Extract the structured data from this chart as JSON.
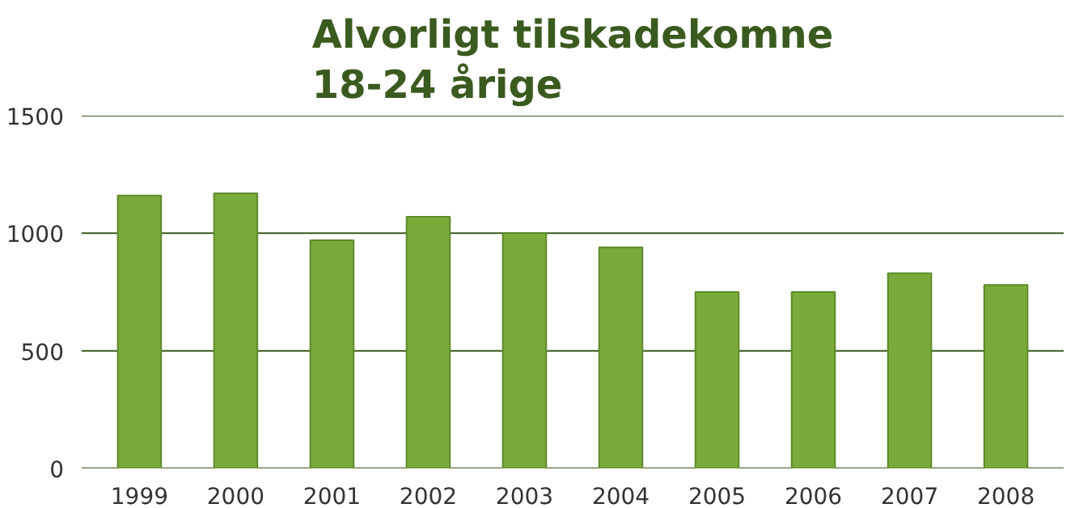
{
  "chart_data": {
    "type": "bar",
    "title": "Alvorligt tilskadekomne\n18-24 årige",
    "categories": [
      "1999",
      "2000",
      "2001",
      "2002",
      "2003",
      "2004",
      "2005",
      "2006",
      "2007",
      "2008"
    ],
    "values": [
      1160,
      1170,
      970,
      1070,
      1000,
      940,
      750,
      750,
      830,
      780
    ],
    "color": "#7aab3a",
    "ylim": [
      0,
      1500
    ],
    "yticks": [
      0,
      500,
      1000,
      1500
    ],
    "grid": "y"
  }
}
